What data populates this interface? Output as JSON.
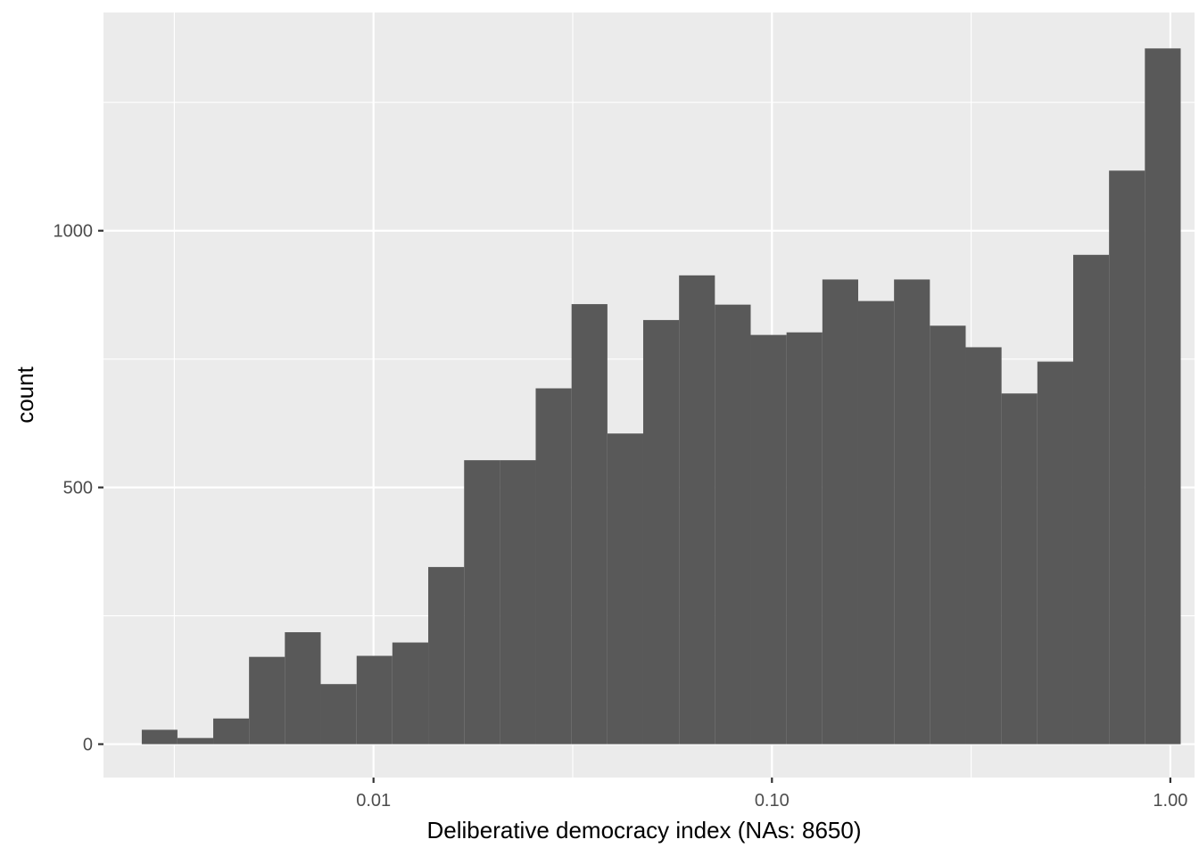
{
  "chart_data": {
    "type": "bar",
    "subtype": "histogram",
    "title": "",
    "xlabel": "Deliberative democracy index (NAs: 8650)",
    "ylabel": "count",
    "x_scale": "log10",
    "xlim": [
      0.0021,
      1.15
    ],
    "ylim": [
      -65,
      1425
    ],
    "x_ticks": [
      {
        "value": 0.01,
        "label": "0.01"
      },
      {
        "value": 0.1,
        "label": "0.10"
      },
      {
        "value": 1.0,
        "label": "1.00"
      }
    ],
    "y_ticks": [
      {
        "value": 0,
        "label": "0"
      },
      {
        "value": 500,
        "label": "500"
      },
      {
        "value": 1000,
        "label": "1000"
      }
    ],
    "bin_edges": [
      0.00262,
      0.00322,
      0.00396,
      0.00487,
      0.00599,
      0.00737,
      0.00907,
      0.01115,
      0.01372,
      0.01688,
      0.02076,
      0.02553,
      0.03141,
      0.03864,
      0.04752,
      0.05846,
      0.07191,
      0.08845,
      0.1088,
      0.13384,
      0.16463,
      0.20251,
      0.24911,
      0.30643,
      0.37694,
      0.46367,
      0.57036,
      0.70159,
      0.86303
    ],
    "counts": [
      28,
      12,
      50,
      170,
      218,
      117,
      172,
      198,
      345,
      553,
      553,
      693,
      857,
      605,
      826,
      913,
      856,
      797,
      802,
      905,
      863,
      905,
      815,
      773,
      683,
      745,
      953,
      1117,
      1355
    ],
    "grid": true,
    "colors": {
      "panel_background": "#ebebeb",
      "grid": "#ffffff",
      "bar_fill": "#595959"
    }
  }
}
